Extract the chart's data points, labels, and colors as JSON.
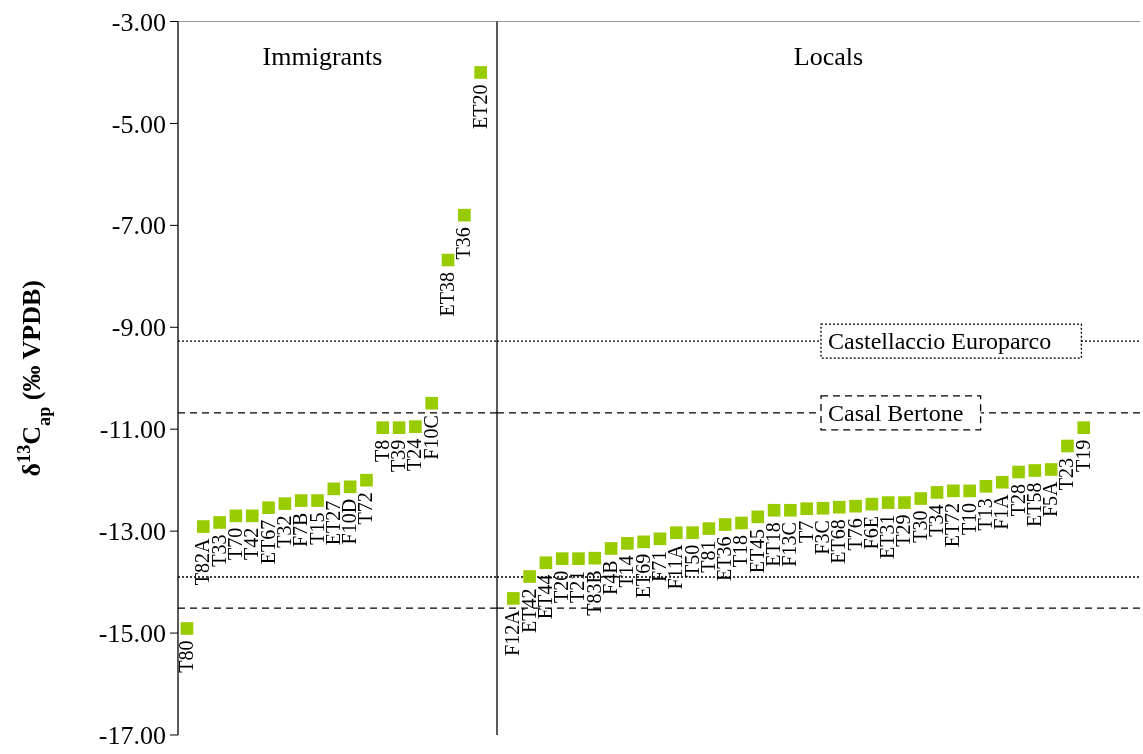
{
  "chart_data": [
    {
      "type": "scatter",
      "title": "Immigrants",
      "ylabel": "δ$^{13}$C$_{ap}$ (‰ VPDB)",
      "marker": "square",
      "grid": false,
      "ylim": [
        -17,
        -3
      ],
      "yticks": [
        {
          "value": -17,
          "label": "-17.00"
        },
        {
          "value": -15,
          "label": "-15.00"
        },
        {
          "value": -13,
          "label": "-13.00"
        },
        {
          "value": -11,
          "label": "-11.00"
        },
        {
          "value": -9,
          "label": "-9.00"
        },
        {
          "value": -7,
          "label": "-7.00"
        },
        {
          "value": -5,
          "label": "-5.00"
        },
        {
          "value": -3,
          "label": "-3.00"
        }
      ],
      "categories": [
        "T80",
        "T82A",
        "T33",
        "T70",
        "T42",
        "ET67",
        "T32",
        "F7B",
        "T15",
        "ET27",
        "F10D",
        "T72",
        "T8",
        "T39",
        "T24",
        "F10C",
        "ET38",
        "T36",
        "ET20"
      ],
      "series": [
        {
          "color": "#99cc00",
          "values": [
            -14.91,
            -12.91,
            -12.83,
            -12.7,
            -12.7,
            -12.54,
            -12.46,
            -12.4,
            -12.4,
            -12.17,
            -12.13,
            -12.0,
            -10.97,
            -10.97,
            -10.95,
            -10.49,
            -7.68,
            -6.8,
            -4.0
          ]
        }
      ],
      "ref_lines": [
        {
          "axis": "y",
          "value": -9.27,
          "line_style": "dotted",
          "color": "#000000"
        },
        {
          "axis": "y",
          "value": -13.9,
          "line_style": "dotted",
          "color": "#000000"
        },
        {
          "axis": "y",
          "value": -10.68,
          "line_style": "dashed",
          "color": "#000000"
        },
        {
          "axis": "y",
          "value": -14.51,
          "line_style": "dashed",
          "color": "#000000"
        }
      ]
    },
    {
      "type": "scatter",
      "title": "Locals",
      "marker": "square",
      "grid": false,
      "tick_labels": "x",
      "ylim": [
        -17,
        -3
      ],
      "categories": [
        "F12A",
        "ET42",
        "ET44",
        "T20",
        "T21",
        "T83B",
        "F4B",
        "T14",
        "ET69",
        "F71",
        "F11A",
        "T50",
        "T81",
        "ET36",
        "T18",
        "ET45",
        "ET18",
        "F13C",
        "T7",
        "F3C",
        "ET68",
        "T76",
        "F6E",
        "ET31",
        "T29",
        "T30",
        "T34",
        "ET72",
        "T10",
        "T13",
        "F1A",
        "T28",
        "ET58",
        "F5A",
        "T23",
        "T19"
      ],
      "series": [
        {
          "color": "#99cc00",
          "values": [
            -14.32,
            -13.89,
            -13.62,
            -13.54,
            -13.54,
            -13.53,
            -13.34,
            -13.24,
            -13.21,
            -13.15,
            -13.03,
            -13.03,
            -12.95,
            -12.87,
            -12.84,
            -12.72,
            -12.59,
            -12.59,
            -12.56,
            -12.55,
            -12.53,
            -12.51,
            -12.47,
            -12.44,
            -12.44,
            -12.36,
            -12.24,
            -12.21,
            -12.21,
            -12.12,
            -12.04,
            -11.84,
            -11.81,
            -11.79,
            -11.33,
            -10.97
          ]
        }
      ],
      "ref_lines": [
        {
          "axis": "y",
          "value": -9.27,
          "label": "Castellaccio Europarco",
          "line_style": "dotted",
          "color": "#000000"
        },
        {
          "axis": "y",
          "value": -13.9,
          "line_style": "dotted",
          "color": "#000000"
        },
        {
          "axis": "y",
          "value": -10.68,
          "label": "Casal Bertone",
          "line_style": "dashed",
          "color": "#000000"
        },
        {
          "axis": "y",
          "value": -14.51,
          "line_style": "dashed",
          "color": "#000000"
        }
      ]
    }
  ]
}
